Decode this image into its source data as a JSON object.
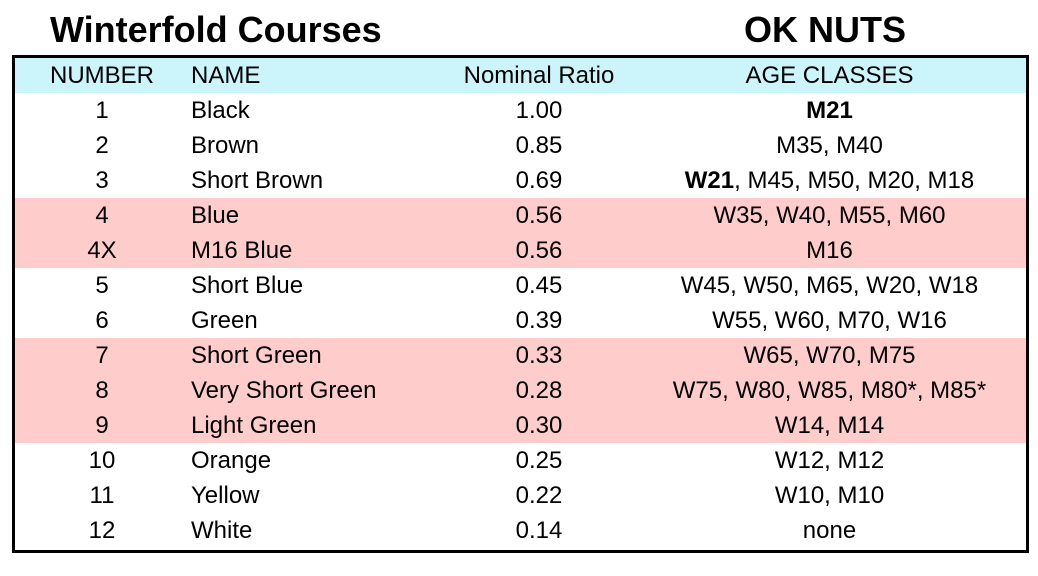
{
  "title_left": "Winterfold Courses",
  "title_right": "OK NUTS",
  "colors": {
    "header_bg": "#ccf5fb",
    "highlight_bg": "#ffcccc"
  },
  "headers": {
    "number": "NUMBER",
    "name": "NAME",
    "ratio": "Nominal Ratio",
    "age": "AGE CLASSES"
  },
  "rows": [
    {
      "number": "1",
      "name": "Black",
      "ratio": "1.00",
      "age_bold": "M21",
      "age": "",
      "highlight": false
    },
    {
      "number": "2",
      "name": "Brown",
      "ratio": "0.85",
      "age_bold": "",
      "age": "M35, M40",
      "highlight": false
    },
    {
      "number": "3",
      "name": "Short Brown",
      "ratio": "0.69",
      "age_bold": "W21",
      "age": ", M45, M50, M20, M18",
      "highlight": false
    },
    {
      "number": "4",
      "name": "Blue",
      "ratio": "0.56",
      "age_bold": "",
      "age": "W35, W40, M55, M60",
      "highlight": true
    },
    {
      "number": "4X",
      "name": "M16 Blue",
      "ratio": "0.56",
      "age_bold": "",
      "age": "M16",
      "highlight": true
    },
    {
      "number": "5",
      "name": "Short Blue",
      "ratio": "0.45",
      "age_bold": "",
      "age": "W45, W50, M65, W20, W18",
      "highlight": false
    },
    {
      "number": "6",
      "name": "Green",
      "ratio": "0.39",
      "age_bold": "",
      "age": "W55, W60, M70, W16",
      "highlight": false
    },
    {
      "number": "7",
      "name": "Short Green",
      "ratio": "0.33",
      "age_bold": "",
      "age": "W65, W70, M75",
      "highlight": true
    },
    {
      "number": "8",
      "name": "Very Short Green",
      "ratio": "0.28",
      "age_bold": "",
      "age": "W75, W80, W85, M80*, M85*",
      "highlight": true
    },
    {
      "number": "9",
      "name": "Light Green",
      "ratio": "0.30",
      "age_bold": "",
      "age": "W14, M14",
      "highlight": true
    },
    {
      "number": "10",
      "name": "Orange",
      "ratio": "0.25",
      "age_bold": "",
      "age": "W12, M12",
      "highlight": false
    },
    {
      "number": "11",
      "name": "Yellow",
      "ratio": "0.22",
      "age_bold": "",
      "age": "W10, M10",
      "highlight": false
    },
    {
      "number": "12",
      "name": "White",
      "ratio": "0.14",
      "age_bold": "",
      "age": "none",
      "highlight": false
    }
  ]
}
